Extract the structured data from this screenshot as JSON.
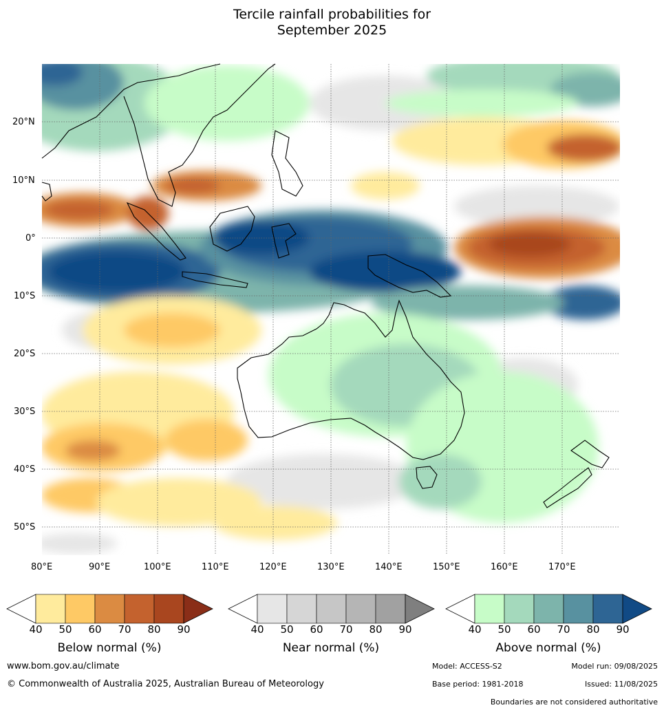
{
  "title": {
    "line1": "Tercile rainfall probabilities for",
    "line2": "September 2025"
  },
  "axes": {
    "lat_labels": [
      "20°N",
      "10°N",
      "0°",
      "10°S",
      "20°S",
      "30°S",
      "40°S",
      "50°S"
    ],
    "lon_labels": [
      "80°E",
      "90°E",
      "100°E",
      "110°E",
      "120°E",
      "130°E",
      "140°E",
      "150°E",
      "160°E",
      "170°E"
    ]
  },
  "colorbars": [
    {
      "title": "Below normal (%)",
      "ticks": [
        "40",
        "50",
        "60",
        "70",
        "80",
        "90"
      ],
      "colors": [
        "#ffeb9d",
        "#fec965",
        "#db8b42",
        "#c4622e",
        "#a9461f",
        "#8a2e18"
      ]
    },
    {
      "title": "Near normal (%)",
      "ticks": [
        "40",
        "50",
        "60",
        "70",
        "80",
        "90"
      ],
      "colors": [
        "#e6e6e6",
        "#d6d6d6",
        "#c6c6c6",
        "#b5b5b5",
        "#a1a1a1",
        "#7f7f7f"
      ]
    },
    {
      "title": "Above normal (%)",
      "ticks": [
        "40",
        "50",
        "60",
        "70",
        "80",
        "90"
      ],
      "colors": [
        "#c7fcc8",
        "#a4d9bc",
        "#7db4ab",
        "#5891a0",
        "#2e6594",
        "#114a85"
      ]
    }
  ],
  "footer": {
    "website": "www.bom.gov.au/climate",
    "copyright": "© Commonwealth of Australia 2025, Australian Bureau of Meteorology",
    "model": "Model: ACCESS-S2",
    "model_run": "Model run: 09/08/2025",
    "base_period": "Base period: 1981-2018",
    "issued": "Issued: 11/08/2025",
    "boundaries": "Boundaries are not considered authoritative"
  }
}
